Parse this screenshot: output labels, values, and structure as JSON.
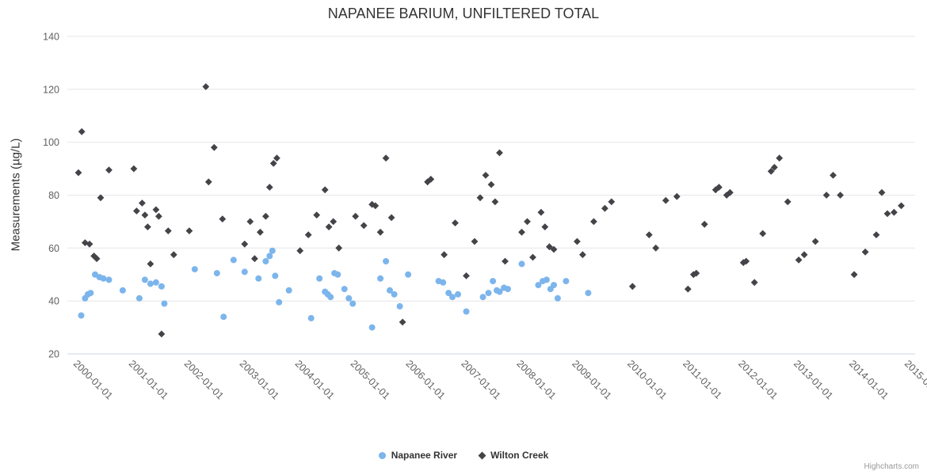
{
  "credits": "Highcharts.com",
  "chart_data": {
    "type": "scatter",
    "title": "NAPANEE BARIUM, UNFILTERED TOTAL",
    "xlabel": "",
    "ylabel": "Measurements (µg/L)",
    "ylim": [
      20,
      140
    ],
    "xlim": [
      1999.8,
      2015.1
    ],
    "y_ticks": [
      20,
      40,
      60,
      80,
      100,
      120,
      140
    ],
    "x_ticks": [
      2000,
      2001,
      2002,
      2003,
      2004,
      2005,
      2006,
      2007,
      2008,
      2009,
      2010,
      2011,
      2012,
      2013,
      2014,
      2015
    ],
    "x_tick_labels": [
      "2000-01-01",
      "2001-01-01",
      "2002-01-01",
      "2003-01-01",
      "2004-01-01",
      "2005-01-01",
      "2006-01-01",
      "2007-01-01",
      "2008-01-01",
      "2009-01-01",
      "2010-01-01",
      "2011-01-01",
      "2012-01-01",
      "2013-01-01",
      "2014-01-01",
      "2015-01-01"
    ],
    "grid": "horizontal-only",
    "legend_position": "bottom",
    "series": [
      {
        "name": "Napanee River",
        "color": "#7cb5ec",
        "marker": "circle",
        "points": [
          [
            2000.05,
            34.5
          ],
          [
            2000.12,
            41
          ],
          [
            2000.17,
            42.5
          ],
          [
            2000.22,
            43
          ],
          [
            2000.3,
            50
          ],
          [
            2000.38,
            49
          ],
          [
            2000.45,
            48.5
          ],
          [
            2000.55,
            48
          ],
          [
            2000.8,
            44
          ],
          [
            2001.1,
            41
          ],
          [
            2001.2,
            48
          ],
          [
            2001.3,
            46.5
          ],
          [
            2001.4,
            47
          ],
          [
            2001.5,
            45.5
          ],
          [
            2001.55,
            39
          ],
          [
            2002.1,
            52
          ],
          [
            2002.5,
            50.5
          ],
          [
            2002.62,
            34
          ],
          [
            2002.8,
            55.5
          ],
          [
            2003.0,
            51
          ],
          [
            2003.25,
            48.5
          ],
          [
            2003.38,
            55
          ],
          [
            2003.45,
            57
          ],
          [
            2003.5,
            59
          ],
          [
            2003.55,
            49.5
          ],
          [
            2003.62,
            39.5
          ],
          [
            2003.8,
            44
          ],
          [
            2004.2,
            33.5
          ],
          [
            2004.35,
            48.5
          ],
          [
            2004.45,
            43.5
          ],
          [
            2004.5,
            42.5
          ],
          [
            2004.55,
            41.5
          ],
          [
            2004.62,
            50.5
          ],
          [
            2004.68,
            50
          ],
          [
            2004.8,
            44.5
          ],
          [
            2004.88,
            41
          ],
          [
            2004.95,
            39
          ],
          [
            2005.3,
            30
          ],
          [
            2005.45,
            48.5
          ],
          [
            2005.55,
            55
          ],
          [
            2005.62,
            44
          ],
          [
            2005.7,
            42.5
          ],
          [
            2005.8,
            38
          ],
          [
            2005.95,
            50
          ],
          [
            2006.5,
            47.5
          ],
          [
            2006.58,
            47
          ],
          [
            2006.68,
            43
          ],
          [
            2006.75,
            41.5
          ],
          [
            2006.85,
            42.5
          ],
          [
            2007.0,
            36
          ],
          [
            2007.3,
            41.5
          ],
          [
            2007.4,
            43
          ],
          [
            2007.48,
            47.5
          ],
          [
            2007.55,
            44
          ],
          [
            2007.6,
            43.5
          ],
          [
            2007.68,
            45
          ],
          [
            2007.75,
            44.5
          ],
          [
            2008.0,
            54
          ],
          [
            2008.3,
            46
          ],
          [
            2008.38,
            47.5
          ],
          [
            2008.45,
            48
          ],
          [
            2008.52,
            44.5
          ],
          [
            2008.58,
            46
          ],
          [
            2008.65,
            41
          ],
          [
            2008.8,
            47.5
          ],
          [
            2009.2,
            43
          ]
        ]
      },
      {
        "name": "Wilton Creek",
        "color": "#434348",
        "marker": "diamond",
        "points": [
          [
            2000.0,
            88.5
          ],
          [
            2000.06,
            104
          ],
          [
            2000.12,
            62
          ],
          [
            2000.2,
            61.5
          ],
          [
            2000.28,
            57
          ],
          [
            2000.33,
            56
          ],
          [
            2000.4,
            79
          ],
          [
            2000.55,
            89.5
          ],
          [
            2001.0,
            90
          ],
          [
            2001.05,
            74
          ],
          [
            2001.15,
            77
          ],
          [
            2001.2,
            72.5
          ],
          [
            2001.25,
            68
          ],
          [
            2001.3,
            54
          ],
          [
            2001.4,
            74.5
          ],
          [
            2001.45,
            72
          ],
          [
            2001.5,
            27.5
          ],
          [
            2001.62,
            66.5
          ],
          [
            2001.72,
            57.5
          ],
          [
            2002.0,
            66.5
          ],
          [
            2002.3,
            121
          ],
          [
            2002.35,
            85
          ],
          [
            2002.45,
            98
          ],
          [
            2002.6,
            71
          ],
          [
            2003.0,
            61.5
          ],
          [
            2003.1,
            70
          ],
          [
            2003.18,
            56
          ],
          [
            2003.28,
            66
          ],
          [
            2003.38,
            72
          ],
          [
            2003.45,
            83
          ],
          [
            2003.52,
            92
          ],
          [
            2003.58,
            94
          ],
          [
            2004.0,
            59
          ],
          [
            2004.15,
            65
          ],
          [
            2004.3,
            72.5
          ],
          [
            2004.45,
            82
          ],
          [
            2004.52,
            68
          ],
          [
            2004.6,
            70
          ],
          [
            2004.7,
            60
          ],
          [
            2005.0,
            72
          ],
          [
            2005.15,
            68.5
          ],
          [
            2005.3,
            76.5
          ],
          [
            2005.36,
            76
          ],
          [
            2005.45,
            66
          ],
          [
            2005.55,
            94
          ],
          [
            2005.65,
            71.5
          ],
          [
            2005.85,
            32
          ],
          [
            2006.3,
            85
          ],
          [
            2006.36,
            86
          ],
          [
            2006.6,
            57.5
          ],
          [
            2006.8,
            69.5
          ],
          [
            2007.0,
            49.5
          ],
          [
            2007.15,
            62.5
          ],
          [
            2007.25,
            79
          ],
          [
            2007.35,
            87.5
          ],
          [
            2007.45,
            84
          ],
          [
            2007.52,
            77.5
          ],
          [
            2007.6,
            96
          ],
          [
            2007.7,
            55
          ],
          [
            2008.0,
            66
          ],
          [
            2008.1,
            70
          ],
          [
            2008.2,
            56.5
          ],
          [
            2008.35,
            73.5
          ],
          [
            2008.42,
            68
          ],
          [
            2008.5,
            60.5
          ],
          [
            2008.58,
            59.5
          ],
          [
            2009.0,
            62.5
          ],
          [
            2009.1,
            57.5
          ],
          [
            2009.3,
            70
          ],
          [
            2009.5,
            75
          ],
          [
            2009.62,
            77.5
          ],
          [
            2010.0,
            45.5
          ],
          [
            2010.3,
            65
          ],
          [
            2010.42,
            60
          ],
          [
            2010.6,
            78
          ],
          [
            2010.8,
            79.5
          ],
          [
            2011.0,
            44.5
          ],
          [
            2011.1,
            50
          ],
          [
            2011.15,
            50.5
          ],
          [
            2011.3,
            69
          ],
          [
            2011.5,
            82
          ],
          [
            2011.56,
            83
          ],
          [
            2011.7,
            80
          ],
          [
            2011.76,
            81
          ],
          [
            2012.0,
            54.5
          ],
          [
            2012.05,
            55
          ],
          [
            2012.2,
            47
          ],
          [
            2012.35,
            65.5
          ],
          [
            2012.5,
            89
          ],
          [
            2012.56,
            90.5
          ],
          [
            2012.65,
            94
          ],
          [
            2012.8,
            77.5
          ],
          [
            2013.0,
            55.5
          ],
          [
            2013.1,
            57.5
          ],
          [
            2013.3,
            62.5
          ],
          [
            2013.5,
            80
          ],
          [
            2013.62,
            87.5
          ],
          [
            2013.75,
            80
          ],
          [
            2014.0,
            50
          ],
          [
            2014.2,
            58.5
          ],
          [
            2014.4,
            65
          ],
          [
            2014.5,
            81
          ],
          [
            2014.6,
            73
          ],
          [
            2014.72,
            73.5
          ],
          [
            2014.85,
            76
          ]
        ]
      }
    ]
  }
}
